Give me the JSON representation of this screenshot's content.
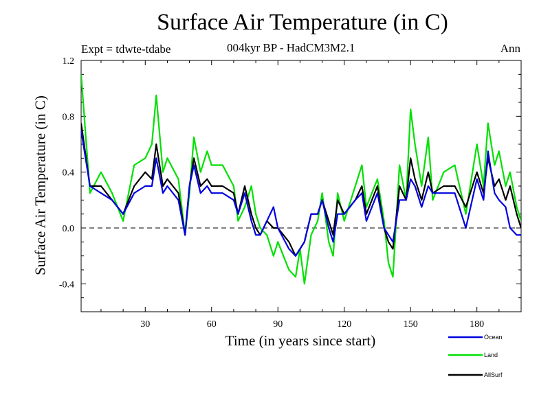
{
  "page": {
    "title": "Surface Air Temperature (in C)",
    "subtitle": "004kyr BP - HadCM3M2.1",
    "expt_label": "Expt = tdwte-tdabe",
    "period_label": "Ann"
  },
  "chart_data": {
    "type": "line",
    "title": "Surface Air Temperature (in C)",
    "xlabel": "Time (in years since start)",
    "ylabel": "Surface Air Temperature (in C)",
    "xlim": [
      1,
      200
    ],
    "ylim": [
      -0.6,
      1.2
    ],
    "x_ticks": [
      30,
      60,
      90,
      120,
      150,
      180
    ],
    "y_ticks": [
      -0.4,
      0.0,
      0.4,
      0.8,
      1.2
    ],
    "y_tick_labels": [
      "-0.4",
      "0.0",
      "0.4",
      "0.8",
      "1.2"
    ],
    "zero_line": "dashed",
    "legend_position": "bottom-right",
    "series": [
      {
        "name": "Land",
        "color": "#00e000",
        "x": [
          1,
          5,
          10,
          15,
          20,
          25,
          30,
          33,
          35,
          38,
          40,
          45,
          48,
          50,
          52,
          55,
          58,
          60,
          65,
          70,
          72,
          75,
          78,
          80,
          82,
          85,
          88,
          90,
          95,
          98,
          100,
          102,
          105,
          108,
          110,
          113,
          115,
          117,
          120,
          125,
          128,
          130,
          135,
          138,
          140,
          142,
          145,
          148,
          150,
          152,
          155,
          158,
          160,
          165,
          170,
          175,
          180,
          183,
          185,
          188,
          190,
          193,
          195,
          198,
          200
        ],
        "values": [
          1.1,
          0.25,
          0.4,
          0.25,
          0.05,
          0.45,
          0.5,
          0.6,
          0.95,
          0.4,
          0.5,
          0.35,
          -0.05,
          0.25,
          0.65,
          0.4,
          0.55,
          0.45,
          0.45,
          0.3,
          0.05,
          0.15,
          0.3,
          0.1,
          0.0,
          -0.05,
          -0.2,
          -0.1,
          -0.3,
          -0.35,
          -0.15,
          -0.4,
          -0.05,
          0.05,
          0.25,
          -0.1,
          -0.2,
          0.25,
          0.05,
          0.3,
          0.45,
          0.15,
          0.35,
          0.05,
          -0.25,
          -0.35,
          0.45,
          0.2,
          0.85,
          0.6,
          0.3,
          0.65,
          0.2,
          0.4,
          0.45,
          0.1,
          0.6,
          0.3,
          0.75,
          0.45,
          0.55,
          0.3,
          0.4,
          0.15,
          0.05
        ]
      },
      {
        "name": "AllSurf",
        "color": "#000000",
        "x": [
          1,
          5,
          10,
          15,
          20,
          25,
          30,
          33,
          35,
          38,
          40,
          45,
          48,
          50,
          52,
          55,
          58,
          60,
          65,
          70,
          72,
          75,
          78,
          80,
          82,
          85,
          88,
          90,
          95,
          98,
          100,
          102,
          105,
          108,
          110,
          113,
          115,
          117,
          120,
          125,
          128,
          130,
          135,
          138,
          140,
          142,
          145,
          148,
          150,
          152,
          155,
          158,
          160,
          165,
          170,
          175,
          180,
          183,
          185,
          188,
          190,
          193,
          195,
          198,
          200
        ],
        "values": [
          0.75,
          0.3,
          0.3,
          0.2,
          0.1,
          0.3,
          0.4,
          0.35,
          0.6,
          0.3,
          0.35,
          0.25,
          -0.05,
          0.3,
          0.5,
          0.3,
          0.35,
          0.3,
          0.3,
          0.25,
          0.1,
          0.3,
          0.1,
          0.0,
          -0.05,
          0.05,
          0.0,
          0.0,
          -0.1,
          -0.2,
          -0.15,
          -0.1,
          0.1,
          0.1,
          0.2,
          0.05,
          -0.05,
          0.2,
          0.1,
          0.2,
          0.3,
          0.1,
          0.3,
          0.0,
          -0.1,
          -0.15,
          0.3,
          0.2,
          0.5,
          0.35,
          0.2,
          0.4,
          0.25,
          0.3,
          0.3,
          0.15,
          0.4,
          0.25,
          0.5,
          0.3,
          0.35,
          0.2,
          0.3,
          0.1,
          0.0
        ]
      },
      {
        "name": "Ocean",
        "color": "#0000e0",
        "x": [
          1,
          5,
          10,
          15,
          20,
          25,
          30,
          33,
          35,
          38,
          40,
          45,
          48,
          50,
          52,
          55,
          58,
          60,
          65,
          70,
          72,
          75,
          78,
          80,
          82,
          85,
          88,
          90,
          95,
          98,
          100,
          102,
          105,
          108,
          110,
          113,
          115,
          117,
          120,
          125,
          128,
          130,
          135,
          138,
          140,
          142,
          145,
          148,
          150,
          152,
          155,
          158,
          160,
          165,
          170,
          175,
          180,
          183,
          185,
          188,
          190,
          193,
          195,
          198,
          200
        ],
        "values": [
          0.7,
          0.3,
          0.25,
          0.2,
          0.1,
          0.25,
          0.3,
          0.3,
          0.5,
          0.25,
          0.3,
          0.2,
          -0.05,
          0.3,
          0.45,
          0.25,
          0.3,
          0.25,
          0.25,
          0.2,
          0.1,
          0.25,
          0.05,
          -0.05,
          -0.05,
          0.05,
          0.15,
          0.0,
          -0.15,
          -0.2,
          -0.15,
          -0.1,
          0.1,
          0.1,
          0.2,
          0.0,
          -0.1,
          0.1,
          0.1,
          0.2,
          0.25,
          0.05,
          0.25,
          0.0,
          -0.05,
          -0.1,
          0.2,
          0.2,
          0.35,
          0.3,
          0.15,
          0.3,
          0.25,
          0.25,
          0.25,
          0.0,
          0.35,
          0.2,
          0.55,
          0.25,
          0.2,
          0.15,
          0.0,
          -0.05,
          -0.05
        ]
      }
    ]
  }
}
